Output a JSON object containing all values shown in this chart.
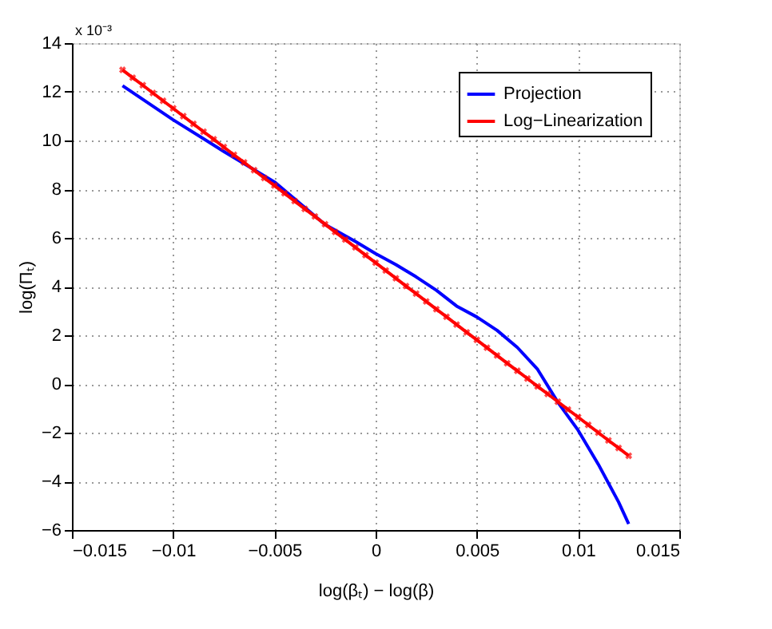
{
  "chart_data": {
    "type": "line",
    "xlabel": "log(βₜ) − log(β)",
    "ylabel": "log(Πₜ)",
    "annotations": [
      "x 10⁻³"
    ],
    "xlim": [
      -0.015,
      0.015
    ],
    "xticks": [
      {
        "value": -0.015,
        "label": "−0.015"
      },
      {
        "value": -0.01,
        "label": "−0.01"
      },
      {
        "value": -0.005,
        "label": "−0.005"
      },
      0,
      0.005,
      0.01,
      0.015
    ],
    "ylim": [
      -6,
      14
    ],
    "yticks": [
      {
        "value": -6,
        "label": "−6"
      },
      {
        "value": -4,
        "label": "−4"
      },
      {
        "value": -2,
        "label": "−2"
      },
      0,
      2,
      4,
      6,
      8,
      10,
      12,
      14
    ],
    "grid": true,
    "legend": "top right",
    "line_style": "solid",
    "series": [
      {
        "name": "Projection",
        "color": "#0000ff",
        "marker": "none",
        "x": [
          -0.0125,
          -0.01,
          -0.0075,
          -0.005,
          -0.0025,
          -0.001,
          0,
          0.001,
          0.002,
          0.003,
          0.004,
          0.005,
          0.006,
          0.007,
          0.008,
          0.009,
          0.01,
          0.011,
          0.012,
          0.0125
        ],
        "values": [
          12.25,
          10.85,
          9.55,
          8.3,
          6.55,
          5.85,
          5.35,
          4.9,
          4.4,
          3.85,
          3.2,
          2.75,
          2.2,
          1.5,
          0.6,
          -0.75,
          -1.9,
          -3.3,
          -4.85,
          -5.75
        ]
      },
      {
        "name": "Log−Linearization",
        "color": "#ff0000",
        "marker": "cross",
        "x": [
          -0.0125,
          -0.012,
          -0.0115,
          -0.011,
          -0.0105,
          -0.01,
          -0.0095,
          -0.009,
          -0.0085,
          -0.008,
          -0.0075,
          -0.007,
          -0.0065,
          -0.006,
          -0.0055,
          -0.005,
          -0.0045,
          -0.004,
          -0.0035,
          -0.003,
          -0.0025,
          -0.002,
          -0.0015,
          -0.001,
          -0.0005,
          0,
          0.0005,
          0.001,
          0.0015,
          0.002,
          0.0025,
          0.003,
          0.0035,
          0.004,
          0.0045,
          0.005,
          0.0055,
          0.006,
          0.0065,
          0.007,
          0.0075,
          0.008,
          0.0085,
          0.009,
          0.0095,
          0.01,
          0.0105,
          0.011,
          0.0115,
          0.012,
          0.0125
        ],
        "values": [
          12.9,
          12.58,
          12.27,
          11.95,
          11.63,
          11.32,
          11.0,
          10.68,
          10.36,
          10.05,
          9.73,
          9.41,
          9.1,
          8.78,
          8.46,
          8.15,
          7.83,
          7.51,
          7.19,
          6.88,
          6.56,
          6.24,
          5.93,
          5.61,
          5.29,
          4.98,
          4.66,
          4.34,
          4.02,
          3.71,
          3.39,
          3.07,
          2.76,
          2.44,
          2.12,
          1.81,
          1.49,
          1.17,
          0.85,
          0.54,
          0.22,
          -0.1,
          -0.41,
          -0.73,
          -1.05,
          -1.36,
          -1.68,
          -2.0,
          -2.32,
          -2.63,
          -2.95
        ]
      }
    ]
  }
}
